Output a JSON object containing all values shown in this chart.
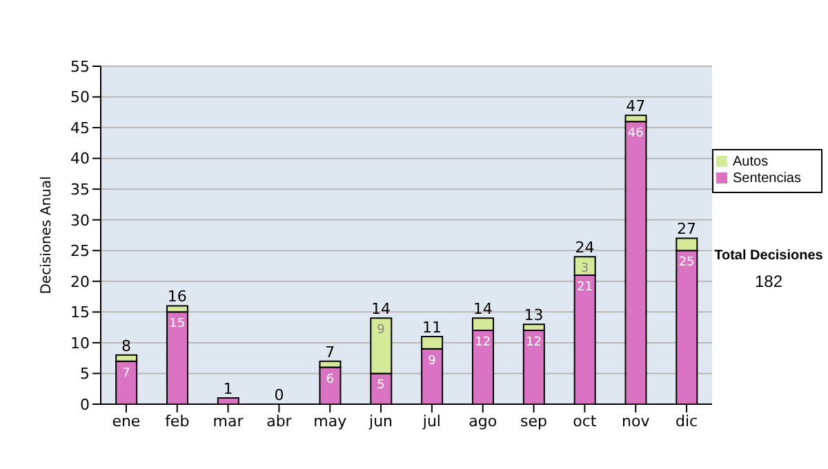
{
  "chart_data": {
    "type": "bar",
    "stacked": true,
    "ylabel": "Decisiones Anual",
    "categories": [
      "ene",
      "feb",
      "mar",
      "abr",
      "may",
      "jun",
      "jul",
      "ago",
      "sep",
      "oct",
      "nov",
      "dic"
    ],
    "series": [
      {
        "name": "Sentencias",
        "color": "#da74c2",
        "values": [
          7,
          15,
          1,
          0,
          6,
          5,
          9,
          12,
          12,
          21,
          46,
          25
        ],
        "value_labels": [
          "7",
          "15",
          null,
          null,
          "6",
          "5",
          "9",
          "12",
          "12",
          "21",
          "46",
          "25"
        ]
      },
      {
        "name": "Autos",
        "color": "#d4ea97",
        "values": [
          1,
          1,
          0,
          0,
          1,
          9,
          2,
          2,
          1,
          3,
          1,
          2
        ],
        "value_labels": [
          null,
          null,
          null,
          null,
          null,
          "9",
          null,
          null,
          null,
          "3",
          null,
          null
        ]
      }
    ],
    "totals": [
      "8",
      "16",
      "1",
      "0",
      "7",
      "14",
      "11",
      "14",
      "13",
      "24",
      "47",
      "27"
    ],
    "ylim": [
      0,
      55
    ],
    "yticks": [
      0,
      5,
      10,
      15,
      20,
      25,
      30,
      35,
      40,
      45,
      50,
      55
    ],
    "grid": "y",
    "legend": "right",
    "annotations": [
      "Total Decisiones",
      "182"
    ]
  }
}
